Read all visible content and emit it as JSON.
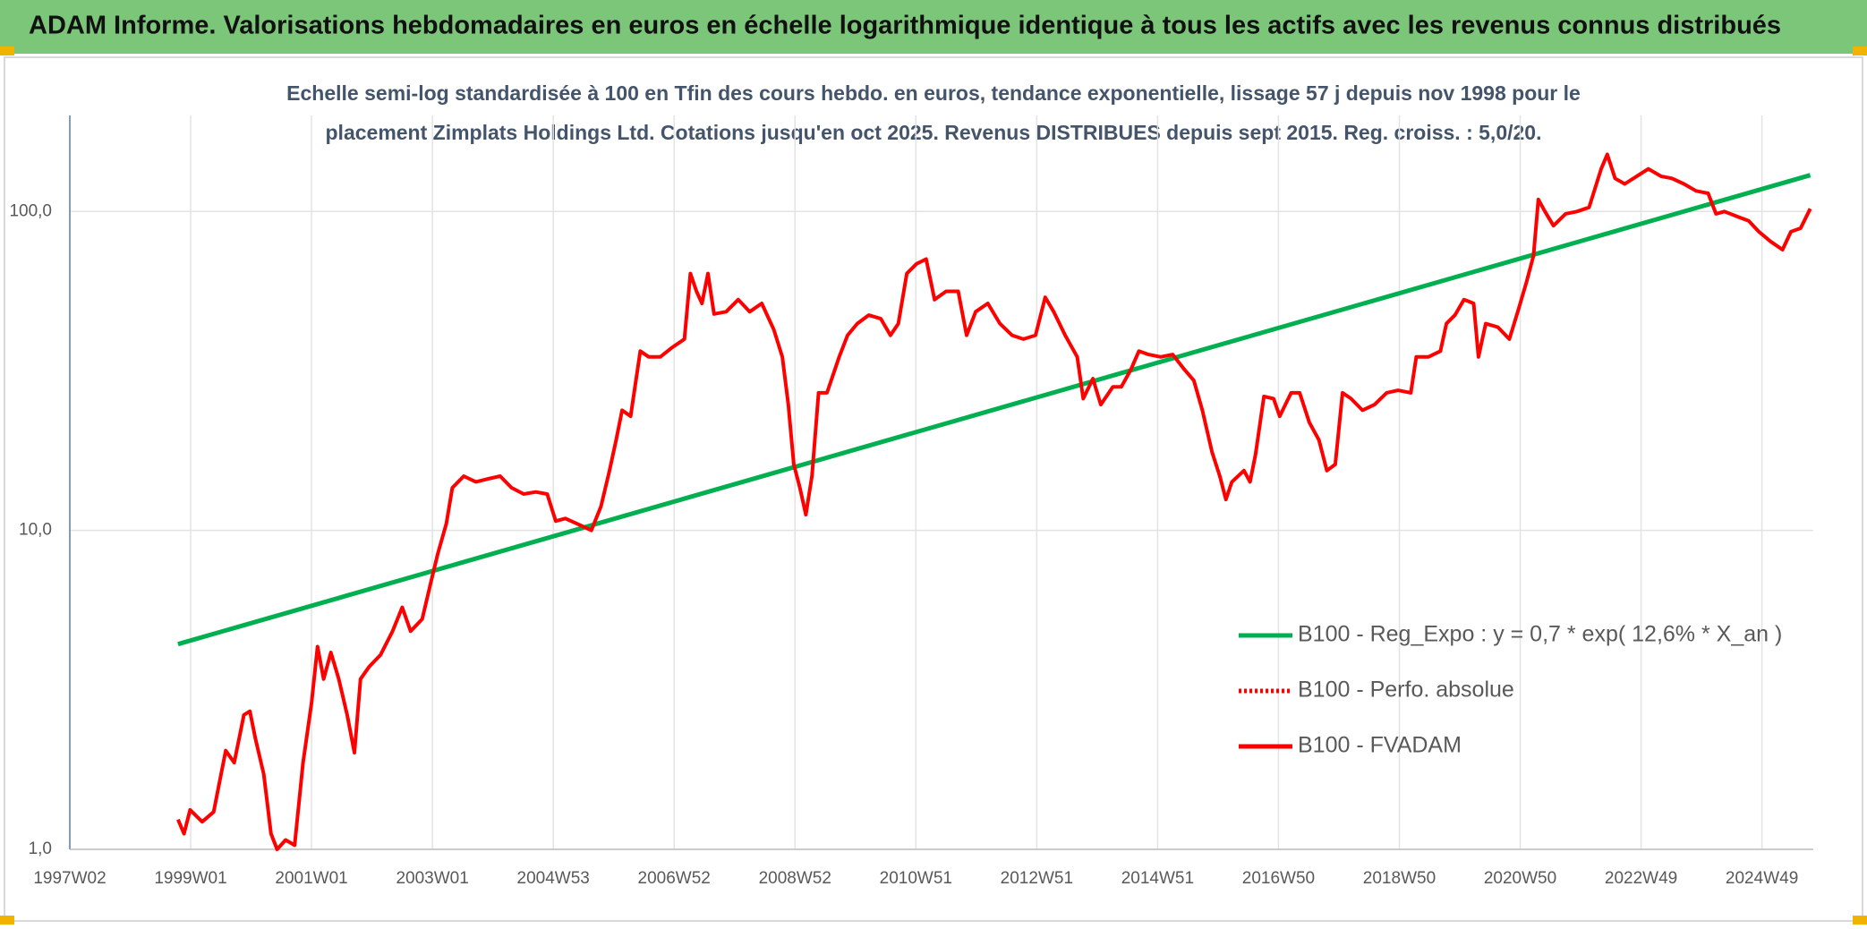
{
  "header": {
    "title": "ADAM Informe. Valorisations hebdomadaires en euros en échelle logarithmique identique à tous les actifs avec les revenus connus distribués"
  },
  "chart_data": {
    "type": "line",
    "title": [
      "Echelle semi-log standardisée à 100 en Tfin des cours hebdo. en euros, tendance exponentielle, lissage 57 j depuis nov 1998 pour le",
      "placement Zimplats Holdings Ltd. Cotations jusqu'en oct 2025. Revenus DISTRIBUES depuis sept 2015. Reg. croiss. : 5,0/20."
    ],
    "log_y": true,
    "grid": true,
    "legend": "right",
    "xlim": [
      1997,
      2025.85
    ],
    "ylim": [
      1,
      200
    ],
    "xticks": [
      {
        "value": 1997,
        "label": "1997W02"
      },
      {
        "value": 1999,
        "label": "1999W01"
      },
      {
        "value": 2001,
        "label": "2001W01"
      },
      {
        "value": 2003,
        "label": "2003W01"
      },
      {
        "value": 2005,
        "label": "2004W53"
      },
      {
        "value": 2007,
        "label": "2006W52"
      },
      {
        "value": 2009,
        "label": "2008W52"
      },
      {
        "value": 2011,
        "label": "2010W51"
      },
      {
        "value": 2013,
        "label": "2012W51"
      },
      {
        "value": 2015,
        "label": "2014W51"
      },
      {
        "value": 2017,
        "label": "2016W50"
      },
      {
        "value": 2019,
        "label": "2018W50"
      },
      {
        "value": 2021,
        "label": "2020W50"
      },
      {
        "value": 2023,
        "label": "2022W49"
      },
      {
        "value": 2025,
        "label": "2024W49"
      }
    ],
    "yticks": [
      {
        "value": 1,
        "label": "1,0"
      },
      {
        "value": 10,
        "label": "10,0"
      },
      {
        "value": 100,
        "label": "100,0"
      }
    ],
    "series": [
      {
        "name": "B100 - Reg_Expo : y = 0,7 * exp( 12,6% *  X_an )",
        "color": "#00b050",
        "dash": "solid",
        "x": [
          1998.79,
          2025.8
        ],
        "values": [
          4.4,
          130
        ]
      },
      {
        "name": "B100 - Perfo. absolue",
        "color": "#ff0000",
        "dash": "dotted",
        "x": [],
        "values": []
      },
      {
        "name": "B100 - FVADAM",
        "color": "#ff0000",
        "dash": "solid",
        "x": [
          1998.79,
          1998.89,
          1998.99,
          1999.19,
          1999.38,
          1999.58,
          1999.72,
          1999.88,
          1999.98,
          2000.07,
          2000.21,
          2000.33,
          2000.43,
          2000.57,
          2000.72,
          2000.86,
          2001.0,
          2001.1,
          2001.2,
          2001.32,
          2001.45,
          2001.59,
          2001.71,
          2001.81,
          2001.95,
          2002.14,
          2002.34,
          2002.5,
          2002.64,
          2002.83,
          2002.97,
          2003.09,
          2003.23,
          2003.33,
          2003.52,
          2003.72,
          2003.92,
          2004.12,
          2004.31,
          2004.51,
          2004.71,
          2004.9,
          2005.04,
          2005.2,
          2005.39,
          2005.63,
          2005.79,
          2005.93,
          2006.04,
          2006.14,
          2006.28,
          2006.44,
          2006.58,
          2006.77,
          2006.97,
          2007.17,
          2007.27,
          2007.37,
          2007.46,
          2007.56,
          2007.66,
          2007.86,
          2008.06,
          2008.25,
          2008.45,
          2008.65,
          2008.79,
          2008.89,
          2008.98,
          2009.08,
          2009.18,
          2009.28,
          2009.39,
          2009.53,
          2009.73,
          2009.87,
          2010.03,
          2010.22,
          2010.42,
          2010.58,
          2010.71,
          2010.85,
          2011.01,
          2011.17,
          2011.31,
          2011.5,
          2011.7,
          2011.84,
          2011.99,
          2012.19,
          2012.39,
          2012.59,
          2012.78,
          2012.98,
          2013.14,
          2013.28,
          2013.47,
          2013.67,
          2013.77,
          2013.93,
          2014.06,
          2014.26,
          2014.4,
          2014.56,
          2014.69,
          2014.85,
          2015.05,
          2015.25,
          2015.44,
          2015.6,
          2015.74,
          2015.9,
          2016.03,
          2016.13,
          2016.23,
          2016.43,
          2016.53,
          2016.62,
          2016.76,
          2016.92,
          2017.02,
          2017.21,
          2017.35,
          2017.51,
          2017.67,
          2017.8,
          2017.94,
          2018.06,
          2018.2,
          2018.39,
          2018.59,
          2018.79,
          2018.98,
          2019.19,
          2019.28,
          2019.48,
          2019.68,
          2019.78,
          2019.92,
          2020.07,
          2020.23,
          2020.31,
          2020.43,
          2020.63,
          2020.82,
          2020.96,
          2021.1,
          2021.22,
          2021.3,
          2021.41,
          2021.55,
          2021.75,
          2021.94,
          2022.14,
          2022.34,
          2022.44,
          2022.57,
          2022.73,
          2022.93,
          2023.12,
          2023.33,
          2023.51,
          2023.71,
          2023.91,
          2024.11,
          2024.24,
          2024.38,
          2024.58,
          2024.78,
          2024.95,
          2025.14,
          2025.34,
          2025.48,
          2025.64,
          2025.8
        ],
        "values": [
          1.24,
          1.12,
          1.33,
          1.22,
          1.31,
          2.04,
          1.87,
          2.64,
          2.71,
          2.23,
          1.72,
          1.12,
          1.0,
          1.07,
          1.03,
          1.87,
          2.88,
          4.32,
          3.42,
          4.14,
          3.42,
          2.64,
          2.01,
          3.42,
          3.73,
          4.07,
          4.83,
          5.74,
          4.83,
          5.27,
          6.82,
          8.46,
          10.5,
          13.6,
          14.8,
          14.2,
          14.5,
          14.8,
          13.6,
          13.0,
          13.2,
          13.0,
          10.7,
          10.9,
          10.5,
          10.0,
          11.9,
          15.4,
          19.2,
          23.8,
          22.8,
          36.5,
          35.0,
          35.0,
          37.5,
          39.8,
          63.9,
          56.2,
          51.5,
          63.9,
          47.7,
          48.5,
          52.9,
          48.5,
          51.5,
          42.6,
          35.0,
          24.8,
          16.1,
          13.6,
          11.2,
          14.8,
          27.0,
          27.0,
          35.0,
          40.9,
          44.5,
          47.3,
          46.1,
          40.9,
          44.5,
          63.9,
          68.5,
          70.9,
          52.9,
          56.2,
          56.2,
          40.9,
          48.5,
          51.5,
          44.5,
          40.9,
          39.8,
          40.9,
          53.8,
          48.5,
          40.9,
          35.0,
          25.9,
          29.9,
          24.8,
          28.2,
          28.2,
          32.0,
          36.5,
          35.6,
          35.0,
          35.6,
          32.0,
          29.5,
          23.8,
          17.6,
          14.8,
          12.5,
          14.2,
          15.4,
          14.2,
          17.3,
          26.3,
          25.9,
          22.8,
          27.0,
          27.0,
          21.8,
          19.2,
          15.4,
          16.1,
          27.0,
          25.9,
          23.8,
          24.8,
          27.0,
          27.5,
          27.0,
          35.0,
          35.0,
          36.5,
          44.5,
          47.3,
          52.9,
          51.5,
          35.0,
          44.5,
          43.4,
          39.8,
          48.5,
          59.7,
          72.7,
          109,
          100,
          90.2,
          98.3,
          100,
          103,
          136,
          151,
          127,
          122,
          129,
          136,
          129,
          127,
          122,
          116,
          114,
          98.3,
          100,
          96.6,
          93.4,
          86.4,
          80.6,
          75.9,
          86.4,
          88.6,
          102
        ]
      }
    ]
  }
}
